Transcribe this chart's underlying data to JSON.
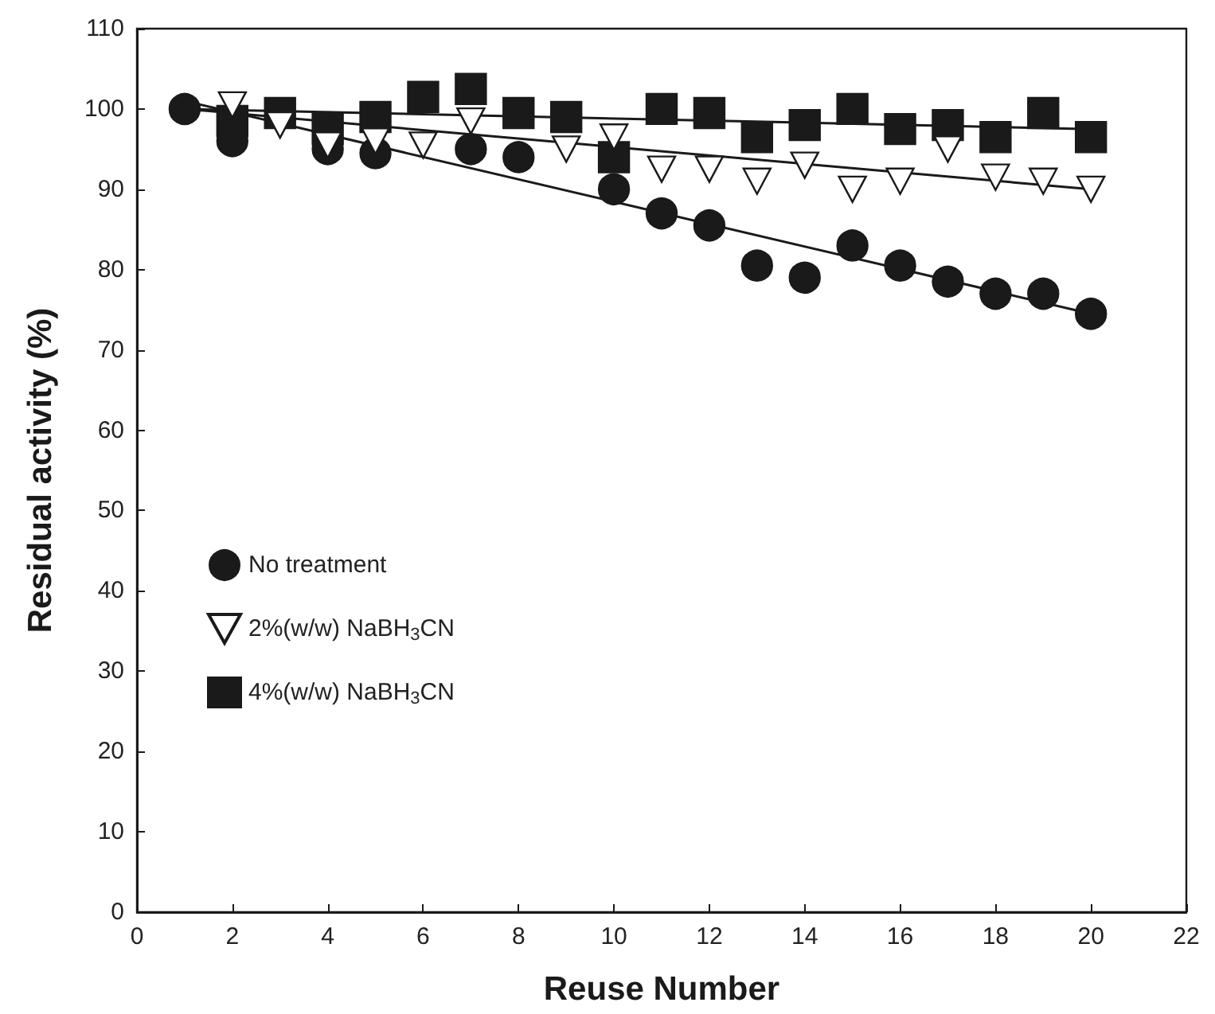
{
  "chart_data": {
    "type": "scatter",
    "xlabel": "Reuse Number",
    "ylabel": "Residual activity (%)",
    "xlim": [
      0,
      22
    ],
    "xticks": [
      0,
      2,
      4,
      6,
      8,
      10,
      12,
      14,
      16,
      18,
      20,
      22
    ],
    "ylim": [
      0,
      110
    ],
    "yticks": [
      0,
      10,
      20,
      30,
      40,
      50,
      60,
      70,
      80,
      90,
      100,
      110
    ],
    "grid": false,
    "legend": "left",
    "series": [
      {
        "name": "No treatment",
        "color": "#1a1a1a",
        "marker": "circle",
        "x": [
          1,
          2,
          4,
          5,
          7,
          8,
          10,
          11,
          12,
          13,
          14,
          15,
          16,
          17,
          18,
          19,
          20
        ],
        "values": [
          100,
          96,
          95,
          94.5,
          95,
          94,
          90,
          87,
          85.5,
          80.5,
          79,
          83,
          80.5,
          78.5,
          77,
          77,
          74.5
        ]
      },
      {
        "name": "2%(w/w) NaBH$_{3}$CN",
        "color": "#ffffff",
        "marker": "triangle-down",
        "x": [
          2,
          3,
          4,
          5,
          6,
          7,
          9,
          10,
          11,
          12,
          13,
          14,
          15,
          16,
          17,
          18,
          19,
          20
        ],
        "values": [
          100.5,
          98,
          95.5,
          96,
          95.5,
          98.5,
          95,
          96.5,
          92.5,
          92.5,
          91,
          93,
          90,
          91,
          95,
          91.5,
          91,
          90
        ]
      },
      {
        "name": "4%(w/w) NaBH$_{3}$CN",
        "color": "#1a1a1a",
        "marker": "square",
        "x": [
          2,
          3,
          4,
          5,
          6,
          7,
          8,
          9,
          10,
          11,
          12,
          13,
          14,
          15,
          16,
          17,
          18,
          19,
          20
        ],
        "values": [
          98.5,
          99.5,
          97.5,
          99,
          101.5,
          102.5,
          99.5,
          99,
          94,
          100,
          99.5,
          96.5,
          98,
          100,
          97.5,
          98,
          96.5,
          99.5,
          96.5
        ]
      },
      {
        "type": "line",
        "color": "#1a1a1a",
        "x": [
          1,
          20
        ],
        "values": [
          101,
          74.5
        ]
      },
      {
        "type": "line",
        "color": "#1a1a1a",
        "x": [
          1,
          20
        ],
        "values": [
          100,
          90
        ]
      },
      {
        "type": "line",
        "color": "#1a1a1a",
        "x": [
          1,
          20
        ],
        "values": [
          100,
          97.5
        ]
      }
    ]
  }
}
